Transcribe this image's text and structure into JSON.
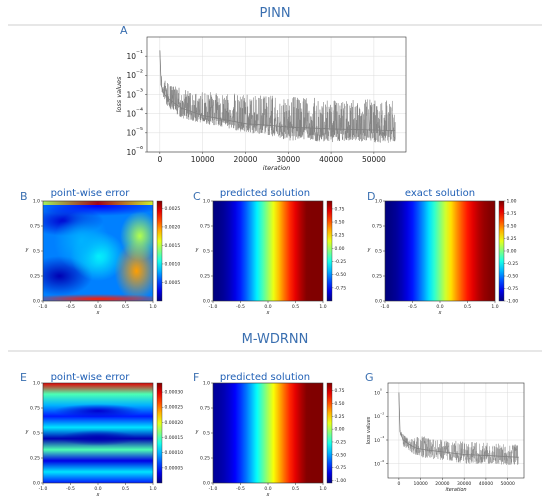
{
  "sections": {
    "pinn_title": "PINN",
    "mwdrnn_title": "M-WDRNN"
  },
  "panels": {
    "A": {
      "letter": "A"
    },
    "B": {
      "letter": "B",
      "title": "point-wise error"
    },
    "C": {
      "letter": "C",
      "title": "predicted solution"
    },
    "D": {
      "letter": "D",
      "title": "exact solution"
    },
    "E": {
      "letter": "E",
      "title": "point-wise error"
    },
    "F": {
      "letter": "F",
      "title": "predicted solution"
    },
    "G": {
      "letter": "G"
    }
  },
  "chart_data": [
    {
      "id": "A",
      "type": "line",
      "xlabel": "iteration",
      "ylabel": "loss values",
      "xlim": [
        -3000,
        57500
      ],
      "ylim_log10": [
        -6,
        0
      ],
      "xticks": [
        0,
        10000,
        20000,
        30000,
        40000,
        50000
      ],
      "yticks_log10": [
        -6,
        -5,
        -4,
        -3,
        -2,
        -1
      ],
      "yticklabels": [
        "10⁻⁶",
        "10⁻⁵",
        "10⁻⁴",
        "10⁻³",
        "10⁻²",
        "10⁻¹"
      ],
      "grid": true,
      "color": "#808080",
      "x": [
        0,
        300,
        1000,
        2000,
        5000,
        10000,
        15000,
        20000,
        25000,
        30000,
        35000,
        40000,
        45000,
        50000,
        55000
      ],
      "y_upper": [
        0.2,
        0.01,
        0.006,
        0.004,
        0.002,
        0.0015,
        0.0012,
        0.001,
        0.0009,
        0.0008,
        0.0007,
        0.00065,
        0.0006,
        0.00055,
        0.0005
      ],
      "y_lower": [
        0.2,
        0.002,
        0.0005,
        0.0002,
        6e-05,
        3e-05,
        2e-05,
        1e-05,
        8e-06,
        4e-06,
        4e-06,
        3e-06,
        4e-06,
        3e-06,
        3e-06
      ],
      "y_envelope": [
        0.2,
        0.003,
        0.001,
        0.0006,
        0.0002,
        8e-05,
        5e-05,
        3e-05,
        2.5e-05,
        2e-05,
        1.8e-05,
        1.6e-05,
        1.5e-05,
        1.4e-05,
        1.3e-05
      ]
    },
    {
      "id": "B",
      "type": "heatmap",
      "title": "point-wise error",
      "xlabel": "x",
      "ylabel": "y",
      "xlim": [
        -1,
        1
      ],
      "ylim": [
        0,
        1
      ],
      "xticks": [
        "-1.0",
        "-0.5",
        "0.0",
        "0.5",
        "1.0"
      ],
      "yticks": [
        "0.0",
        "0.25",
        "0.5",
        "0.75",
        "1.0"
      ],
      "colorbar_ticks": [
        "0.0025",
        "0.0020",
        "0.0015",
        "0.0010",
        "0.0005"
      ],
      "colorbar_range": [
        0,
        0.0027
      ],
      "colormap": "jet"
    },
    {
      "id": "C",
      "type": "heatmap",
      "title": "predicted solution",
      "xlabel": "x",
      "ylabel": "y",
      "xlim": [
        -1,
        1
      ],
      "ylim": [
        0,
        1
      ],
      "xticks": [
        "-1.0",
        "-0.5",
        "0.0",
        "0.5",
        "1.0"
      ],
      "yticks": [
        "0.0",
        "0.25",
        "0.5",
        "0.75",
        "1.0"
      ],
      "colorbar_ticks": [
        "0.75",
        "0.50",
        "0.25",
        "0.00",
        "-0.25",
        "-0.50",
        "-0.75"
      ],
      "colorbar_range": [
        -1,
        0.9
      ],
      "colormap": "jet"
    },
    {
      "id": "D",
      "type": "heatmap",
      "title": "exact solution",
      "xlabel": "x",
      "ylabel": "y",
      "xlim": [
        -1,
        1
      ],
      "ylim": [
        0,
        1
      ],
      "xticks": [
        "-1.0",
        "-0.5",
        "0.0",
        "0.5",
        "1.0"
      ],
      "yticks": [
        "0.0",
        "0.25",
        "0.5",
        "0.75",
        "1.0"
      ],
      "colorbar_ticks": [
        "1.00",
        "0.75",
        "0.50",
        "0.25",
        "0.00",
        "-0.25",
        "-0.50",
        "-0.75",
        "-1.00"
      ],
      "colorbar_range": [
        -1,
        1
      ],
      "colormap": "jet"
    },
    {
      "id": "E",
      "type": "heatmap",
      "title": "point-wise error",
      "xlabel": "x",
      "ylabel": "y",
      "xlim": [
        -1,
        1
      ],
      "ylim": [
        0,
        1
      ],
      "xticks": [
        "-1.0",
        "-0.5",
        "0.0",
        "0.5",
        "1.0"
      ],
      "yticks": [
        "0.0",
        "0.25",
        "0.5",
        "0.75",
        "1.0"
      ],
      "colorbar_ticks": [
        "0.00030",
        "0.00025",
        "0.00020",
        "0.00015",
        "0.00010",
        "0.00005"
      ],
      "colorbar_range": [
        0,
        0.00033
      ],
      "colormap": "jet"
    },
    {
      "id": "F",
      "type": "heatmap",
      "title": "predicted solution",
      "xlabel": "x",
      "ylabel": "y",
      "xlim": [
        -1,
        1
      ],
      "ylim": [
        0,
        1
      ],
      "xticks": [
        "-1.0",
        "-0.5",
        "0.0",
        "0.5",
        "1.0"
      ],
      "yticks": [
        "0.0",
        "0.25",
        "0.5",
        "0.75",
        "1.0"
      ],
      "colorbar_ticks": [
        "0.75",
        "0.50",
        "0.25",
        "0.00",
        "-0.25",
        "-0.50",
        "-0.75",
        "-1.00"
      ],
      "colorbar_range": [
        -1.05,
        0.9
      ],
      "colormap": "jet"
    },
    {
      "id": "G",
      "type": "line",
      "xlabel": "iteration",
      "ylabel": "loss values",
      "xlim": [
        -5000,
        57500
      ],
      "ylim_log10": [
        -7.2,
        0.8
      ],
      "xticks": [
        0,
        10000,
        20000,
        30000,
        40000,
        50000
      ],
      "yticks_log10": [
        -6,
        -4,
        -2,
        0
      ],
      "yticklabels": [
        "10⁻⁶",
        "10⁻⁴",
        "10⁻²",
        "10⁰"
      ],
      "grid": true,
      "color": "#808080",
      "x": [
        0,
        500,
        2000,
        5000,
        8000,
        12000,
        20000,
        30000,
        40000,
        50000,
        55000
      ],
      "y_upper": [
        1,
        0.001,
        0.0003,
        0.0001,
        0.0002,
        0.0002,
        0.0001,
        8e-05,
        6e-05,
        5e-05,
        4e-05
      ],
      "y_lower": [
        1,
        0.0003,
        3e-05,
        1e-05,
        5e-06,
        3e-06,
        2e-06,
        1e-06,
        1e-06,
        8e-07,
        8e-07
      ],
      "y_envelope": [
        1,
        0.0005,
        0.0001,
        4e-05,
        2e-05,
        1.5e-05,
        1e-05,
        6e-06,
        5e-06,
        4e-06,
        3.5e-06
      ]
    }
  ]
}
